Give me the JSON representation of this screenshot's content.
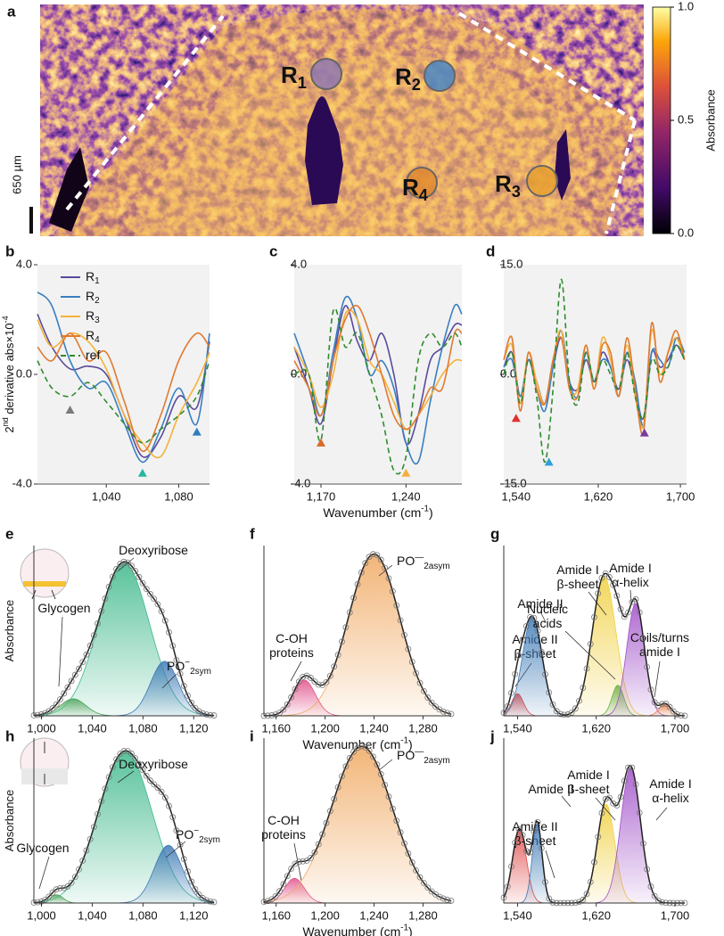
{
  "chart_data": [
    {
      "type": "image",
      "panel": "a",
      "scale_bar": "650 µm",
      "regions": [
        {
          "text": "R",
          "sub": "1",
          "color": "#8f77b0"
        },
        {
          "text": "R",
          "sub": "2",
          "color": "#4a86c4"
        },
        {
          "text": "R",
          "sub": "4",
          "color": "#e08a30"
        },
        {
          "text": "R",
          "sub": "3",
          "color": "#e8a030"
        }
      ],
      "colorbar": {
        "label": "Absorbance",
        "ylim": [
          0,
          1
        ],
        "yticks": [
          {
            "value": 0,
            "label": "0.0"
          },
          {
            "value": 0.5,
            "label": "0.5"
          },
          {
            "value": 1,
            "label": "1.0"
          }
        ]
      }
    },
    {
      "type": "line",
      "panel": "b",
      "ylabel": {
        "text": "2",
        "sup": "nd",
        "tail": " derivative abs×10",
        "tail_sup": "-4"
      },
      "xlim": [
        1002,
        1097
      ],
      "xticks": [
        {
          "value": 1040,
          "label": "1,040"
        },
        {
          "value": 1080,
          "label": "1,080"
        }
      ],
      "ylim": [
        -4,
        4
      ],
      "yticks": [
        {
          "value": 4,
          "label": "4.0"
        },
        {
          "value": 0,
          "label": "0.0"
        },
        {
          "value": -4,
          "label": "-4.0"
        }
      ],
      "x": [
        1002,
        1010,
        1020,
        1030,
        1040,
        1050,
        1060,
        1070,
        1080,
        1090,
        1097
      ],
      "series": [
        {
          "name": "R",
          "name_sub": "1",
          "color": "#5a4a9c",
          "values": [
            2.2,
            1.0,
            0.2,
            0.3,
            0.0,
            -1.5,
            -3.0,
            -2.3,
            -0.8,
            -1.2,
            1.2
          ]
        },
        {
          "name": "R",
          "name_sub": "2",
          "color": "#3a7fc0",
          "values": [
            3.0,
            2.5,
            0.5,
            -0.5,
            -0.3,
            -1.8,
            -3.2,
            -2.0,
            -0.5,
            -1.8,
            1.5
          ]
        },
        {
          "name": "R",
          "name_sub": "3",
          "color": "#f5b23a",
          "values": [
            2.0,
            1.0,
            1.5,
            1.2,
            0.2,
            -1.5,
            -2.5,
            -3.0,
            -1.5,
            -0.3,
            0.8
          ]
        },
        {
          "name": "R",
          "name_sub": "4",
          "color": "#e07a30",
          "values": [
            1.0,
            0.5,
            1.5,
            0.5,
            0.8,
            -1.0,
            -2.8,
            -1.5,
            0.5,
            1.5,
            1.0
          ]
        },
        {
          "name": "ref",
          "color": "#2e8b2e",
          "dash": true,
          "values": [
            0.5,
            -0.5,
            -0.8,
            -0.3,
            -1.0,
            -1.8,
            -2.5,
            -2.0,
            -1.5,
            -0.8,
            0.5
          ]
        }
      ],
      "markers": [
        {
          "x": 1020,
          "y": -1.3,
          "color": "#7a7a7a"
        },
        {
          "x": 1060,
          "y": -3.6,
          "color": "#2ab5a0"
        },
        {
          "x": 1090,
          "y": -2.1,
          "color": "#2e7dbf"
        }
      ]
    },
    {
      "type": "line",
      "panel": "c",
      "xlabel": {
        "text": "Wavenumber (cm",
        "sup": "-1",
        "tail": ")"
      },
      "xlim": [
        1148,
        1286
      ],
      "xticks": [
        {
          "value": 1170,
          "label": "1,170"
        },
        {
          "value": 1240,
          "label": "1,240"
        }
      ],
      "ylim": [
        -4,
        4
      ],
      "yticks": [
        {
          "value": 4,
          "label": "4.0"
        },
        {
          "value": 0,
          "label": "0.0"
        },
        {
          "value": -4,
          "label": "-4.0"
        }
      ],
      "x": [
        1148,
        1160,
        1170,
        1180,
        1190,
        1200,
        1210,
        1220,
        1230,
        1240,
        1250,
        1260,
        1270,
        1280,
        1286
      ],
      "series": [
        {
          "color": "#5a4a9c",
          "values": [
            1.0,
            -0.5,
            -1.8,
            0.5,
            2.5,
            1.2,
            0.5,
            1.5,
            0.0,
            -2.5,
            -1.5,
            0.5,
            1.0,
            1.8,
            1.8
          ]
        },
        {
          "color": "#3a7fc0",
          "values": [
            1.5,
            0.0,
            -1.5,
            0.8,
            2.8,
            2.0,
            0.0,
            0.5,
            -0.5,
            -2.5,
            -3.2,
            -1.0,
            1.0,
            2.5,
            2.2
          ]
        },
        {
          "color": "#f5b23a",
          "values": [
            1.0,
            0.0,
            -1.2,
            0.0,
            2.2,
            2.0,
            0.5,
            0.0,
            -1.0,
            -2.0,
            -1.5,
            -0.8,
            0.0,
            0.5,
            0.5
          ]
        },
        {
          "color": "#e07a30",
          "values": [
            0.5,
            -0.5,
            -1.5,
            0.5,
            2.0,
            2.5,
            1.5,
            0.0,
            -1.5,
            -2.0,
            -1.5,
            -0.5,
            -0.5,
            1.5,
            1.5
          ]
        },
        {
          "color": "#2e8b2e",
          "dash": true,
          "values": [
            0.0,
            0.0,
            -2.4,
            2.3,
            1.0,
            1.5,
            0.0,
            -1.5,
            -3.5,
            -3.0,
            0.5,
            1.5,
            1.0,
            1.5,
            1.0
          ]
        }
      ],
      "markers": [
        {
          "x": 1170,
          "y": -2.5,
          "color": "#d86a2a"
        },
        {
          "x": 1240,
          "y": -3.6,
          "color": "#f5b040"
        }
      ]
    },
    {
      "type": "line",
      "panel": "d",
      "xlim": [
        1528,
        1706
      ],
      "xticks": [
        {
          "value": 1540,
          "label": "1,540"
        },
        {
          "value": 1620,
          "label": "1,620"
        },
        {
          "value": 1700,
          "label": "1,700"
        }
      ],
      "ylim": [
        -15,
        15
      ],
      "yticks": [
        {
          "value": 15,
          "label": "15.0"
        },
        {
          "value": 0,
          "label": "0.0"
        },
        {
          "value": -15,
          "label": "-15.0"
        }
      ],
      "x": [
        1528,
        1536,
        1544,
        1552,
        1560,
        1568,
        1576,
        1584,
        1592,
        1600,
        1608,
        1616,
        1624,
        1632,
        1640,
        1648,
        1656,
        1664,
        1672,
        1680,
        1688,
        1696,
        1704
      ],
      "series": [
        {
          "color": "#5a4a9c",
          "values": [
            1,
            3,
            -3,
            2,
            -1,
            -4,
            1,
            5,
            -1,
            -2,
            2,
            -1,
            3,
            1,
            -2,
            2,
            -2,
            -6,
            3,
            1,
            2,
            4,
            2
          ]
        },
        {
          "color": "#3a7fc0",
          "values": [
            1,
            2,
            -3,
            2,
            -2,
            -5,
            1,
            6,
            -1,
            -3,
            3,
            -1,
            2,
            1,
            -3,
            3,
            -1,
            -7,
            3,
            2,
            1,
            5,
            3
          ]
        },
        {
          "color": "#f5b23a",
          "values": [
            2,
            4,
            -4,
            3,
            -1,
            -4,
            2,
            6,
            -2,
            -2,
            4,
            -2,
            5,
            2,
            -3,
            4,
            -3,
            -7,
            6,
            0,
            3,
            5,
            2
          ]
        },
        {
          "color": "#e07a30",
          "values": [
            2,
            5,
            -5,
            3,
            -2,
            -4,
            2,
            5,
            -2,
            -3,
            4,
            -2,
            4,
            3,
            -3,
            5,
            -2,
            -8,
            7,
            -1,
            3,
            6,
            2
          ]
        },
        {
          "color": "#2e8b2e",
          "dash": true,
          "values": [
            0,
            3,
            -4,
            2,
            -3,
            -12,
            -2,
            13,
            -1,
            -4,
            3,
            -1,
            2,
            0,
            -2,
            3,
            -3,
            -6,
            2,
            0,
            1,
            4,
            2
          ]
        }
      ],
      "markers": [
        {
          "x": 1540,
          "y": -6,
          "color": "#e03030"
        },
        {
          "x": 1572,
          "y": -12,
          "color": "#30a0d8"
        },
        {
          "x": 1665,
          "y": -8,
          "color": "#7a3a9a"
        }
      ]
    },
    {
      "type": "peaks",
      "panel": "e",
      "ylabel": {
        "text": "Absorbance"
      },
      "xlim": [
        994,
        1136
      ],
      "xticks": [
        {
          "value": 1000,
          "label": "1,000"
        },
        {
          "value": 1040,
          "label": "1,040"
        },
        {
          "value": 1080,
          "label": "1,080"
        },
        {
          "value": 1120,
          "label": "1,120"
        }
      ],
      "ylim": [
        0,
        1
      ],
      "components": [
        {
          "label": {
            "lines": [
              "Glycogen"
            ]
          },
          "color": "#4f9f4f",
          "center": 1025,
          "height": 0.1,
          "width": 10
        },
        {
          "label": {
            "lines": [
              "Deoxyribose"
            ]
          },
          "color": "#3cb88a",
          "center": 1065,
          "height": 0.9,
          "width": 20
        },
        {
          "label": {
            "lines": [
              "PO"
            ],
            "sup": "−",
            "sub": "2sym"
          },
          "color": "#3b78b5",
          "center": 1097,
          "height": 0.32,
          "width": 11
        }
      ]
    },
    {
      "type": "peaks",
      "panel": "f",
      "xlabel": {
        "text": "Wavenumber (cm",
        "sup": "-1",
        "tail": ")"
      },
      "xlim": [
        1150,
        1303
      ],
      "xticks": [
        {
          "value": 1160,
          "label": "1,160"
        },
        {
          "value": 1200,
          "label": "1,200"
        },
        {
          "value": 1240,
          "label": "1,240"
        },
        {
          "value": 1280,
          "label": "1,280"
        }
      ],
      "ylim": [
        0,
        1
      ],
      "components": [
        {
          "label": {
            "lines": [
              "C-OH",
              "proteins"
            ]
          },
          "color": "#e0508a",
          "center": 1183,
          "height": 0.21,
          "width": 9
        },
        {
          "label": {
            "lines": [
              "PO"
            ],
            "sup": "—",
            "sub": "2asym"
          },
          "color": "#f0a860",
          "center": 1240,
          "height": 0.95,
          "width": 21
        }
      ]
    },
    {
      "type": "peaks",
      "panel": "g",
      "xlim": [
        1526,
        1710
      ],
      "xticks": [
        {
          "value": 1540,
          "label": "1,540"
        },
        {
          "value": 1620,
          "label": "1,620"
        },
        {
          "value": 1700,
          "label": "1,700"
        }
      ],
      "ylim": [
        0,
        1
      ],
      "components": [
        {
          "label": {
            "lines": [
              "Amide II",
              "β-sheet"
            ]
          },
          "color": "#e04848",
          "center": 1540,
          "height": 0.13,
          "width": 6
        },
        {
          "label": {
            "lines": [
              "Amide II"
            ]
          },
          "color": "#3b78b5",
          "center": 1555,
          "height": 0.58,
          "width": 10
        },
        {
          "label": {
            "lines": [
              "Amide I",
              "β-sheet"
            ]
          },
          "color": "#f0d040",
          "center": 1628,
          "height": 0.82,
          "width": 12
        },
        {
          "label": {
            "lines": [
              "Nucleic",
              "acids"
            ]
          },
          "color": "#6ab04a",
          "center": 1642,
          "height": 0.18,
          "width": 6
        },
        {
          "label": {
            "lines": [
              "Amide I",
              "α-helix"
            ]
          },
          "color": "#a050c8",
          "center": 1660,
          "height": 0.66,
          "width": 9
        },
        {
          "label": {
            "lines": [
              "Coils/turns",
              "amide I"
            ]
          },
          "color": "#e87a40",
          "center": 1690,
          "height": 0.07,
          "width": 6
        }
      ]
    },
    {
      "type": "peaks",
      "panel": "h",
      "ylabel": {
        "text": "Absorbance"
      },
      "xlim": [
        994,
        1136
      ],
      "xticks": [
        {
          "value": 1000,
          "label": "1,000"
        },
        {
          "value": 1040,
          "label": "1,040"
        },
        {
          "value": 1080,
          "label": "1,080"
        },
        {
          "value": 1120,
          "label": "1,120"
        }
      ],
      "ylim": [
        0,
        1
      ],
      "components": [
        {
          "label": {
            "lines": [
              "Glycogen"
            ]
          },
          "color": "#4f9f4f",
          "center": 1012,
          "height": 0.05,
          "width": 5
        },
        {
          "label": {
            "lines": [
              "Deoxyribose"
            ]
          },
          "color": "#3cb88a",
          "center": 1066,
          "height": 0.92,
          "width": 21
        },
        {
          "label": {
            "lines": [
              "PO"
            ],
            "sup": "−",
            "sub": "2sym"
          },
          "color": "#3b78b5",
          "center": 1100,
          "height": 0.35,
          "width": 11
        }
      ]
    },
    {
      "type": "peaks",
      "panel": "i",
      "xlabel": {
        "text": "Wavenumber (cm",
        "sup": "-1",
        "tail": ")"
      },
      "xlim": [
        1150,
        1303
      ],
      "xticks": [
        {
          "value": 1160,
          "label": "1,160"
        },
        {
          "value": 1200,
          "label": "1,200"
        },
        {
          "value": 1240,
          "label": "1,240"
        },
        {
          "value": 1280,
          "label": "1,280"
        }
      ],
      "ylim": [
        0,
        1
      ],
      "components": [
        {
          "label": {
            "lines": [
              "C-OH",
              "proteins"
            ]
          },
          "color": "#e0508a",
          "center": 1175,
          "height": 0.15,
          "width": 8
        },
        {
          "label": {
            "lines": [
              "PO"
            ],
            "sup": "—",
            "sub": "2asym"
          },
          "color": "#f0a860",
          "center": 1230,
          "height": 0.95,
          "width": 25
        }
      ]
    },
    {
      "type": "peaks",
      "panel": "j",
      "xlim": [
        1526,
        1710
      ],
      "xticks": [
        {
          "value": 1540,
          "label": "1,540"
        },
        {
          "value": 1620,
          "label": "1,620"
        },
        {
          "value": 1700,
          "label": "1,700"
        }
      ],
      "ylim": [
        0,
        1
      ],
      "components": [
        {
          "label": {
            "lines": [
              "Amide II",
              "β-sheet"
            ]
          },
          "color": "#e04848",
          "center": 1542,
          "height": 0.45,
          "width": 7
        },
        {
          "label": {
            "lines": [
              "Amide II"
            ]
          },
          "color": "#3b78b5",
          "center": 1560,
          "height": 0.48,
          "width": 5
        },
        {
          "label": {
            "lines": [
              "Amide I",
              "β-sheet"
            ]
          },
          "color": "#f0d040",
          "center": 1630,
          "height": 0.6,
          "width": 9
        },
        {
          "label": {
            "lines": [
              "Amide I",
              "α-helix"
            ]
          },
          "color": "#a050c8",
          "center": 1655,
          "height": 0.82,
          "width": 10
        }
      ]
    }
  ]
}
